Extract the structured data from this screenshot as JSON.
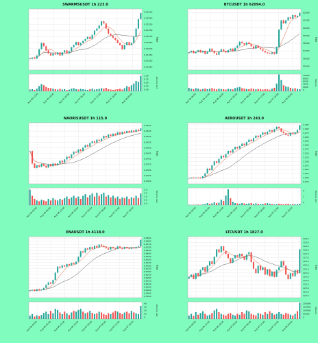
{
  "background": "#7ffcbe",
  "colors": {
    "up": "#26a69a",
    "down": "#ef5350",
    "ma_fast": "#e0623a",
    "ma_slow": "#555555",
    "grid": "#e3e3e3"
  },
  "chart_data": [
    {
      "type": "candlestick",
      "title": "SWARMSUSDT 1h 223.0",
      "ylabel": "Price",
      "volume_label": "Volume  1e7",
      "ylim": [
        0.0179,
        0.0238
      ],
      "price_ticks": [
        "0.02300",
        "0.02250",
        "0.02200",
        "0.02150",
        "0.02100",
        "0.02050",
        "0.02000",
        "0.01950",
        "0.01900",
        "0.01850"
      ],
      "volume_ticks": [
        "1.00",
        "0.75",
        "0.50",
        "0.25",
        "0.00"
      ],
      "x_ticks": [
        "Aug 06 12:00",
        "Aug 06 18:00",
        "Aug 07 00:00",
        "Aug 07 06:00",
        "Aug 07 12:00",
        "Aug 07 18:00",
        "Aug 08 00:00"
      ],
      "close": [
        0.019,
        0.0191,
        0.019,
        0.0193,
        0.0199,
        0.0205,
        0.0202,
        0.0198,
        0.0195,
        0.0193,
        0.0195,
        0.0194,
        0.0196,
        0.0193,
        0.0196,
        0.0198,
        0.0195,
        0.0197,
        0.0201,
        0.0203,
        0.0206,
        0.0203,
        0.0205,
        0.0207,
        0.0209,
        0.0211,
        0.0209,
        0.0213,
        0.0217,
        0.0219,
        0.0222,
        0.0226,
        0.0224,
        0.0219,
        0.0214,
        0.0212,
        0.021,
        0.0208,
        0.0205,
        0.0203,
        0.0199,
        0.0203,
        0.0206,
        0.0203,
        0.0205,
        0.0211,
        0.0219,
        0.0228,
        0.0234
      ],
      "volume": [
        0.1,
        0.12,
        0.08,
        0.15,
        0.3,
        0.42,
        0.35,
        0.25,
        0.2,
        0.18,
        0.15,
        0.12,
        0.1,
        0.14,
        0.1,
        0.12,
        0.08,
        0.1,
        0.15,
        0.18,
        0.12,
        0.1,
        0.14,
        0.12,
        0.1,
        0.08,
        0.12,
        0.15,
        0.1,
        0.12,
        0.14,
        0.18,
        0.15,
        0.2,
        0.12,
        0.1,
        0.08,
        0.1,
        0.12,
        0.14,
        0.1,
        0.18,
        0.3,
        0.25,
        0.35,
        0.45,
        0.6,
        0.55,
        0.9
      ],
      "vol_max": 1.0
    },
    {
      "type": "candlestick",
      "title": "BTCUSDT 1h 62094.0",
      "ylabel": "Price",
      "volume_label": "Volume",
      "ylim": [
        54500,
        62500
      ],
      "price_ticks": [
        "62000",
        "61000",
        "60000",
        "59000",
        "58000",
        "57000",
        "56000",
        "55000"
      ],
      "volume_ticks": [
        "10000",
        "8000",
        "6000",
        "4000",
        "2000",
        "0"
      ],
      "x_ticks": [
        "Aug 06 06:00",
        "Aug 06 12:00",
        "Aug 06 18:00",
        "Aug 07 00:00",
        "Aug 07 06:00",
        "Aug 07 12:00",
        "Aug 07 18:00",
        "Aug 08 00:00"
      ],
      "close": [
        56800,
        57000,
        56700,
        56900,
        57100,
        56800,
        57000,
        56600,
        56900,
        57300,
        57000,
        56700,
        56500,
        56900,
        57200,
        57000,
        56800,
        57100,
        57300,
        57000,
        57400,
        57700,
        58200,
        58000,
        57800,
        58100,
        57900,
        57600,
        57300,
        57700,
        57400,
        57200,
        57000,
        56800,
        56700,
        56600,
        56800,
        56600,
        57500,
        59800,
        61000,
        60600,
        61000,
        61400,
        61200,
        61700,
        61400,
        61600,
        62000
      ],
      "volume": [
        2000,
        1500,
        1200,
        1800,
        1500,
        1000,
        1300,
        1600,
        1200,
        1500,
        1800,
        1400,
        1100,
        1500,
        1300,
        1200,
        1000,
        1400,
        1200,
        1100,
        1800,
        2200,
        2500,
        1800,
        1500,
        1300,
        1200,
        1600,
        1400,
        1100,
        1300,
        1200,
        1000,
        1200,
        1100,
        900,
        1500,
        2000,
        4500,
        9800,
        6500,
        3500,
        2800,
        2500,
        2000,
        1500,
        1800,
        1400,
        1200
      ],
      "vol_max": 10000
    },
    {
      "type": "candlestick",
      "title": "NAORISUSDT 1h 115.0",
      "ylabel": "Price",
      "volume_label": "Volume  1e6",
      "ylim": [
        0.029,
        0.056
      ],
      "price_ticks": [
        "0.0550",
        "0.0525",
        "0.0500",
        "0.0475",
        "0.0450",
        "0.0425",
        "0.0400",
        "0.0375",
        "0.0350",
        "0.0325",
        "0.0300"
      ],
      "volume_ticks": [
        "2.0",
        "1.5",
        "1.0",
        "0.5",
        "0.0"
      ],
      "x_ticks": [
        "Aug 06 00:00",
        "Aug 06 06:00",
        "Aug 06 12:00",
        "Aug 06 18:00",
        "Aug 07 00:00",
        "Aug 07 06:00",
        "Aug 07 12:00",
        "Aug 07 18:00"
      ],
      "close": [
        0.0435,
        0.038,
        0.036,
        0.0372,
        0.0365,
        0.0378,
        0.037,
        0.0362,
        0.0375,
        0.0368,
        0.038,
        0.0372,
        0.038,
        0.0392,
        0.0385,
        0.0398,
        0.041,
        0.0405,
        0.042,
        0.0432,
        0.0428,
        0.0442,
        0.0435,
        0.045,
        0.0462,
        0.0455,
        0.047,
        0.0478,
        0.0472,
        0.0485,
        0.048,
        0.049,
        0.0502,
        0.0495,
        0.0508,
        0.0502,
        0.0512,
        0.0506,
        0.0518,
        0.051,
        0.052,
        0.0515,
        0.0524,
        0.0517,
        0.0526,
        0.052,
        0.053,
        0.0525,
        0.0535
      ],
      "volume": [
        2.0,
        1.2,
        0.8,
        0.6,
        0.5,
        0.7,
        0.6,
        0.5,
        0.8,
        0.6,
        0.9,
        0.7,
        0.6,
        0.8,
        0.7,
        0.9,
        1.1,
        0.8,
        1.0,
        1.2,
        0.9,
        1.1,
        0.8,
        1.2,
        1.4,
        1.0,
        1.3,
        1.5,
        1.1,
        1.6,
        1.2,
        1.4,
        1.6,
        1.1,
        1.3,
        1.0,
        1.2,
        0.9,
        1.1,
        0.8,
        1.0,
        0.9,
        1.1,
        0.8,
        1.0,
        0.9,
        1.2,
        0.9,
        1.5
      ],
      "vol_max": 2.2
    },
    {
      "type": "candlestick",
      "title": "AEROUSDT 1h 243.0",
      "ylabel": "Price",
      "volume_label": "Volume  1e7",
      "ylim": [
        0.965,
        1.345
      ],
      "price_ticks": [
        "1.325",
        "1.300",
        "1.275",
        "1.250",
        "1.225",
        "1.200",
        "1.175",
        "1.150",
        "1.125",
        "1.100",
        "1.075",
        "1.050",
        "1.025",
        "1.000",
        "0.975"
      ],
      "volume_ticks": [
        "2",
        "1",
        "0"
      ],
      "x_ticks": [
        "Aug 06 00:00",
        "Aug 06 06:00",
        "Aug 06 12:00",
        "Aug 06 18:00",
        "Aug 07 00:00",
        "Aug 07 06:00",
        "Aug 07 12:00",
        "Aug 07 18:00"
      ],
      "close": [
        1.0,
        1.003,
        1.001,
        1.004,
        1.002,
        1.0,
        1.012,
        1.03,
        1.06,
        1.05,
        1.08,
        1.105,
        1.095,
        1.12,
        1.14,
        1.13,
        1.15,
        1.17,
        1.16,
        1.18,
        1.195,
        1.185,
        1.2,
        1.215,
        1.205,
        1.225,
        1.24,
        1.23,
        1.25,
        1.265,
        1.255,
        1.27,
        1.285,
        1.275,
        1.29,
        1.3,
        1.29,
        1.305,
        1.32,
        1.31,
        1.29,
        1.28,
        1.27,
        1.265,
        1.28,
        1.275,
        1.285,
        1.3,
        1.33
      ],
      "volume": [
        0.05,
        0.04,
        0.06,
        0.05,
        0.08,
        0.05,
        0.1,
        0.15,
        0.3,
        0.2,
        0.25,
        0.4,
        0.3,
        0.35,
        0.8,
        0.6,
        1.4,
        2.3,
        1.0,
        0.5,
        0.3,
        0.25,
        0.2,
        0.3,
        0.25,
        0.2,
        0.25,
        0.3,
        0.2,
        0.25,
        0.2,
        0.15,
        0.2,
        0.25,
        0.3,
        0.2,
        0.15,
        0.1,
        0.15,
        0.2,
        0.15,
        0.1,
        0.15,
        0.2,
        0.1,
        0.15,
        0.12,
        0.15,
        0.2
      ],
      "vol_max": 2.5
    },
    {
      "type": "candlestick",
      "title": "ENAUSDT 1h 4118.0",
      "ylabel": "Price",
      "volume_label": "Volume  1e6",
      "ylim": [
        0.589,
        0.689
      ],
      "price_ticks": [
        "0.6850",
        "0.6800",
        "0.6750",
        "0.6700",
        "0.6650",
        "0.6600",
        "0.6550",
        "0.6500",
        "0.6450",
        "0.6400",
        "0.6350",
        "0.6300",
        "0.6250",
        "0.6200",
        "0.6150",
        "0.6100",
        "0.6050",
        "0.6000",
        "0.5950",
        "0.5900"
      ],
      "volume_ticks": [
        "40",
        "30",
        "20",
        "10",
        "0"
      ],
      "x_ticks": [
        "Aug 06 00:00",
        "Aug 06 06:00",
        "Aug 06 12:00",
        "Aug 06 18:00",
        "Aug 07 00:00",
        "Aug 07 06:00",
        "Aug 07 12:00",
        "Aug 07 18:00"
      ],
      "close": [
        0.601,
        0.602,
        0.6,
        0.603,
        0.601,
        0.602,
        0.605,
        0.61,
        0.614,
        0.612,
        0.618,
        0.63,
        0.64,
        0.638,
        0.642,
        0.64,
        0.644,
        0.642,
        0.646,
        0.644,
        0.648,
        0.656,
        0.665,
        0.663,
        0.67,
        0.668,
        0.672,
        0.669,
        0.674,
        0.671,
        0.676,
        0.674,
        0.672,
        0.67,
        0.668,
        0.672,
        0.67,
        0.669,
        0.673,
        0.671,
        0.669,
        0.672,
        0.67,
        0.669,
        0.671,
        0.67,
        0.672,
        0.673,
        0.684
      ],
      "volume": [
        8,
        12,
        6,
        9,
        7,
        10,
        15,
        18,
        12,
        20,
        14,
        25,
        22,
        16,
        12,
        18,
        14,
        10,
        16,
        20,
        18,
        22,
        25,
        18,
        14,
        16,
        20,
        15,
        12,
        14,
        18,
        16,
        12,
        10,
        14,
        12,
        16,
        20,
        18,
        15,
        12,
        16,
        18,
        14,
        20,
        16,
        14,
        12,
        32
      ],
      "vol_max": 42
    },
    {
      "type": "candlestick",
      "title": "LTCUSDT 1h 1827.0",
      "ylabel": "Price",
      "volume_label": "Volume",
      "ylim": [
        121.7,
        129.9
      ],
      "price_ticks": [
        "129.5",
        "129.0",
        "128.5",
        "128.0",
        "127.5",
        "127.0",
        "126.5",
        "126.0",
        "125.5",
        "125.0",
        "124.5",
        "124.0",
        "123.5",
        "123.0",
        "122.5",
        "122.0"
      ],
      "volume_ticks": [
        "200000",
        "150000",
        "100000",
        "50000",
        "0"
      ],
      "x_ticks": [
        "Aug 06 06:00",
        "Aug 06 12:00",
        "Aug 06 18:00",
        "Aug 07 00:00",
        "Aug 07 06:00",
        "Aug 07 12:00",
        "Aug 07 18:00",
        "Aug 08 00:00"
      ],
      "close": [
        124.5,
        124.8,
        124.2,
        125.0,
        124.6,
        125.4,
        125.8,
        125.2,
        126.0,
        126.6,
        126.2,
        127.2,
        128.2,
        127.8,
        128.6,
        128.0,
        127.6,
        127.0,
        126.4,
        127.0,
        127.4,
        127.2,
        127.6,
        127.3,
        126.8,
        127.5,
        127.8,
        126.5,
        125.6,
        125.0,
        126.0,
        125.4,
        125.8,
        124.8,
        125.5,
        124.6,
        125.2,
        124.5,
        125.4,
        125.8,
        126.6,
        126.0,
        124.8,
        124.2,
        125.0,
        124.6,
        125.4,
        125.0,
        128.2
      ],
      "volume": [
        40000,
        60000,
        35000,
        80000,
        50000,
        70000,
        90000,
        60000,
        40000,
        50000,
        70000,
        100000,
        120000,
        80000,
        60000,
        50000,
        40000,
        60000,
        70000,
        50000,
        40000,
        60000,
        50000,
        80000,
        60000,
        100000,
        90000,
        60000,
        50000,
        40000,
        70000,
        60000,
        50000,
        80000,
        60000,
        90000,
        70000,
        50000,
        60000,
        80000,
        60000,
        50000,
        70000,
        60000,
        50000,
        40000,
        60000,
        90000,
        190000
      ],
      "vol_max": 200000
    }
  ]
}
